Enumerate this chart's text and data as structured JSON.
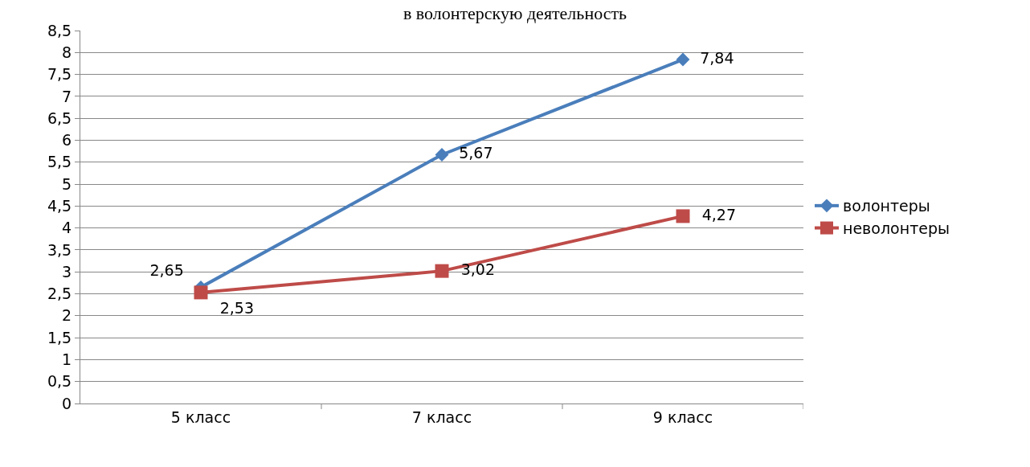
{
  "chart_data": {
    "type": "line",
    "title": "в волонтерскую деятельность",
    "categories": [
      "5 класс",
      "7 класс",
      "9 класс"
    ],
    "series": [
      {
        "name": "волонтеры",
        "color": "#4a7ebb",
        "marker": "diamond",
        "values": [
          2.65,
          5.67,
          7.84
        ],
        "value_labels": [
          "2,65",
          "5,67",
          "7,84"
        ]
      },
      {
        "name": "неволонтеры",
        "color": "#be4b48",
        "marker": "square",
        "values": [
          2.53,
          3.02,
          4.27
        ],
        "value_labels": [
          "2,53",
          "3,02",
          "4,27"
        ]
      }
    ],
    "ylim": [
      0,
      8.5
    ],
    "yticks": [
      0,
      {
        "value": 0.5,
        "label": "0,5"
      },
      1,
      {
        "value": 1.5,
        "label": "1,5"
      },
      2,
      {
        "value": 2.5,
        "label": "2,5"
      },
      3,
      {
        "value": 3.5,
        "label": "3,5"
      },
      4,
      {
        "value": 4.5,
        "label": "4,5"
      },
      5,
      {
        "value": 5.5,
        "label": "5,5"
      },
      6,
      {
        "value": 6.5,
        "label": "6,5"
      },
      7,
      {
        "value": 7.5,
        "label": "7,5"
      },
      8,
      {
        "value": 8.5,
        "label": "8,5"
      }
    ],
    "grid": "y",
    "legend": "right",
    "line_style": "solid"
  }
}
